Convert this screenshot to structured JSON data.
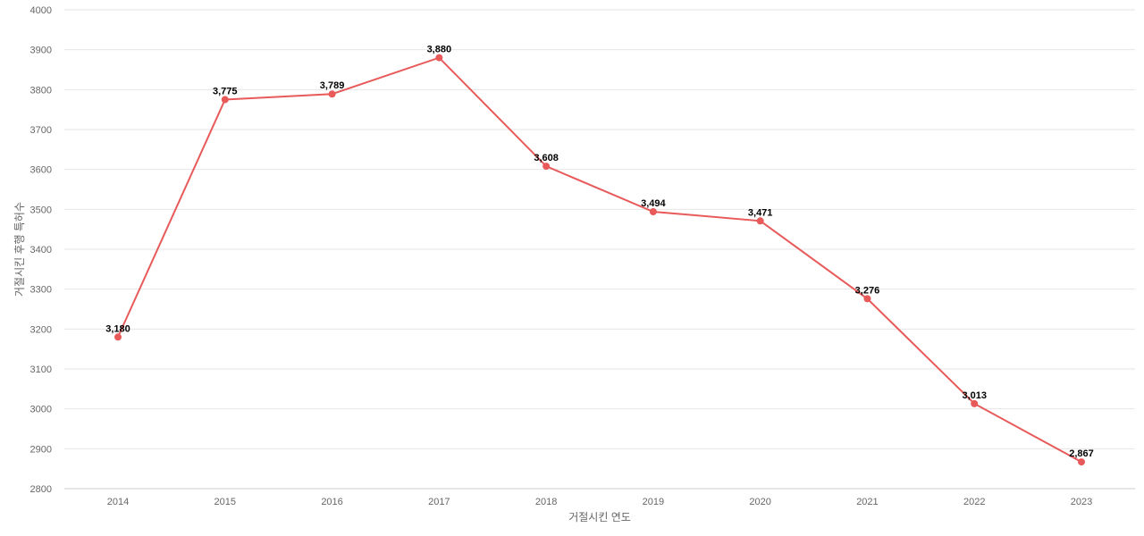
{
  "chart_data": {
    "type": "line",
    "xlabel": "거절시킨 연도",
    "ylabel": "거절시킨 후행 특허수",
    "categories": [
      "2014",
      "2015",
      "2016",
      "2017",
      "2018",
      "2019",
      "2020",
      "2021",
      "2022",
      "2023"
    ],
    "series": [
      {
        "values": [
          3180,
          3775,
          3789,
          3880,
          3608,
          3494,
          3471,
          3276,
          3013,
          2867
        ],
        "labels": [
          "3,180",
          "3,775",
          "3,789",
          "3,880",
          "3,608",
          "3,494",
          "3,471",
          "3,276",
          "3,013",
          "2,867"
        ]
      }
    ],
    "ylim": [
      2800,
      4000
    ],
    "yticks": [
      2800,
      2900,
      3000,
      3100,
      3200,
      3300,
      3400,
      3500,
      3600,
      3700,
      3800,
      3900,
      4000
    ],
    "grid": true,
    "legend": "none",
    "colors": {
      "line": "#e85a5a",
      "grid": "#e6e6e6",
      "axis": "#cccccc",
      "tick_text": "#666666",
      "label_text": "#000000"
    }
  }
}
